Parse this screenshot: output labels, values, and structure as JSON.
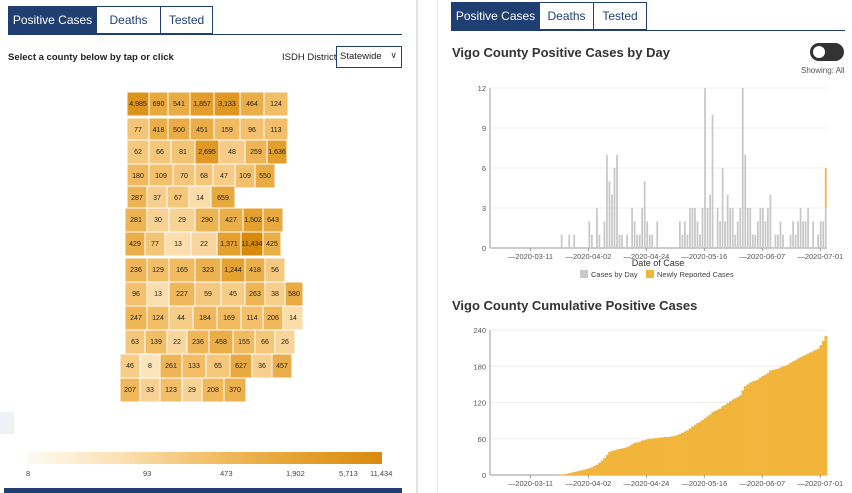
{
  "tabs": {
    "left": [
      "Positive Cases",
      "Deaths",
      "Tested"
    ],
    "right": [
      "Positive Cases",
      "Deaths",
      "Tested"
    ],
    "active": "Positive Cases"
  },
  "map_panel": {
    "prompt": "Select a county below by tap or click",
    "district_label": "ISDH District",
    "district_value": "Statewide",
    "legend_ticks": [
      "8",
      "93",
      "473",
      "1,902",
      "5,713",
      "11,434"
    ],
    "county_values": [
      "4,985",
      "690",
      "541",
      "1,857",
      "3,133",
      "464",
      "124",
      "77",
      "418",
      "500",
      "451",
      "159",
      "96",
      "113",
      "62",
      "66",
      "81",
      "2,695",
      "48",
      "259",
      "1,636",
      "180",
      "109",
      "70",
      "68",
      "47",
      "109",
      "550",
      "287",
      "37",
      "67",
      "14",
      "659",
      "281",
      "30",
      "29",
      "290",
      "427",
      "1,502",
      "643",
      "429",
      "77",
      "13",
      "22",
      "1,371",
      "11,434",
      "425",
      "236",
      "129",
      "165",
      "323",
      "1,244",
      "418",
      "56",
      "96",
      "13",
      "227",
      "59",
      "45",
      "263",
      "38",
      "580",
      "247",
      "124",
      "44",
      "184",
      "169",
      "114",
      "206",
      "14",
      "63",
      "139",
      "22",
      "236",
      "458",
      "155",
      "66",
      "26",
      "46",
      "8",
      "261",
      "133",
      "65",
      "627",
      "36",
      "457",
      "207",
      "33",
      "123",
      "29",
      "208",
      "370"
    ]
  },
  "colors": {
    "nav": "#1f3f73",
    "bar_gray": "#c8c8c8",
    "bar_orange": "#f2b53c",
    "cumulative": "#f2b53c"
  },
  "daily_chart": {
    "title": "Vigo County Positive Cases by Day",
    "toggle_state": "off",
    "showing": "Showing: All",
    "xlabel": "Date of Case",
    "legend": [
      "Cases by Day",
      "Newly Reported Cases"
    ]
  },
  "cumulative_chart": {
    "title": "Vigo County Cumulative Positive Cases"
  },
  "chart_data": [
    {
      "type": "bar",
      "title": "Vigo County Positive Cases by Day",
      "xlabel": "Date of Case",
      "ylabel": "",
      "ylim": [
        0,
        12
      ],
      "yticks": [
        "0",
        "3",
        "6",
        "9",
        "12"
      ],
      "xticks": [
        "2020-03-11",
        "2020-04-02",
        "2020-04-24",
        "2020-05-16",
        "2020-06-07",
        "2020-07-01"
      ],
      "series": [
        {
          "name": "Cases by Day",
          "values": [
            0,
            0,
            0,
            0,
            0,
            0,
            0,
            0,
            0,
            0,
            0,
            0,
            0,
            0,
            0,
            0,
            0,
            0,
            0,
            0,
            0,
            0,
            0,
            0,
            0,
            0,
            0,
            0,
            1,
            0,
            0,
            1,
            0,
            1,
            0,
            0,
            0,
            0,
            0,
            2,
            1,
            0,
            3,
            1,
            0,
            2,
            7,
            5,
            4,
            6,
            7,
            1,
            1,
            0,
            1,
            0,
            3,
            2,
            1,
            1,
            3,
            5,
            2,
            1,
            1,
            0,
            2,
            0,
            0,
            0,
            0,
            0,
            0,
            0,
            0,
            2,
            1,
            2,
            1,
            3,
            3,
            3,
            2,
            1,
            3,
            12,
            3,
            4,
            10,
            0,
            3,
            2,
            6,
            2,
            4,
            3,
            3,
            1,
            2,
            3,
            12,
            7,
            3,
            3,
            1,
            1,
            2,
            3,
            3,
            2,
            3,
            4,
            0,
            1,
            1,
            2,
            1,
            0,
            0,
            1,
            2,
            1,
            2,
            3,
            2,
            2,
            3,
            0,
            2,
            0,
            1,
            2,
            2,
            3
          ]
        },
        {
          "name": "Newly Reported Cases",
          "values": [
            0,
            0,
            0,
            0,
            0,
            0,
            0,
            0,
            0,
            0,
            0,
            0,
            0,
            0,
            0,
            0,
            0,
            0,
            0,
            0,
            0,
            0,
            0,
            0,
            0,
            0,
            0,
            0,
            0,
            0,
            0,
            0,
            0,
            0,
            0,
            0,
            0,
            0,
            0,
            0,
            0,
            0,
            0,
            0,
            0,
            0,
            0,
            0,
            0,
            0,
            0,
            0,
            0,
            0,
            0,
            0,
            0,
            0,
            0,
            0,
            0,
            0,
            0,
            0,
            0,
            0,
            0,
            0,
            0,
            0,
            0,
            0,
            0,
            0,
            0,
            0,
            0,
            0,
            0,
            0,
            0,
            0,
            0,
            0,
            0,
            0,
            0,
            0,
            0,
            0,
            0,
            0,
            0,
            0,
            0,
            0,
            0,
            0,
            0,
            0,
            0,
            0,
            0,
            0,
            0,
            0,
            0,
            0,
            0,
            0,
            0,
            0,
            0,
            0,
            0,
            0,
            0,
            0,
            0,
            0,
            0,
            0,
            0,
            0,
            0,
            0,
            0,
            0,
            0,
            0,
            0,
            0,
            0,
            3
          ]
        }
      ]
    },
    {
      "type": "bar",
      "title": "Vigo County Cumulative Positive Cases",
      "xlabel": "",
      "ylabel": "",
      "ylim": [
        0,
        240
      ],
      "yticks": [
        "0",
        "60",
        "120",
        "180",
        "240"
      ],
      "xticks": [
        "2020-03-11",
        "2020-04-02",
        "2020-04-24",
        "2020-05-16",
        "2020-06-07",
        "2020-07-01"
      ],
      "values": [
        0,
        0,
        0,
        0,
        0,
        0,
        0,
        0,
        0,
        0,
        0,
        0,
        0,
        0,
        0,
        0,
        0,
        0,
        0,
        0,
        0,
        0,
        0,
        0,
        0,
        0,
        0,
        0,
        1,
        1,
        2,
        3,
        4,
        5,
        6,
        7,
        8,
        9,
        10,
        11,
        13,
        15,
        17,
        20,
        24,
        28,
        33,
        38,
        40,
        41,
        42,
        43,
        44,
        45,
        46,
        48,
        51,
        53,
        54,
        55,
        57,
        58,
        59,
        60,
        60,
        61,
        61,
        62,
        62,
        63,
        63,
        63,
        64,
        65,
        66,
        68,
        70,
        72,
        74,
        77,
        80,
        83,
        86,
        88,
        91,
        94,
        97,
        100,
        104,
        106,
        108,
        110,
        114,
        116,
        119,
        122,
        125,
        127,
        129,
        132,
        140,
        147,
        150,
        153,
        155,
        156,
        158,
        161,
        164,
        166,
        169,
        173,
        174,
        175,
        176,
        178,
        180,
        181,
        183,
        186,
        188,
        190,
        193,
        195,
        197,
        199,
        201,
        203,
        205,
        207,
        209,
        215,
        222,
        230
      ]
    }
  ]
}
